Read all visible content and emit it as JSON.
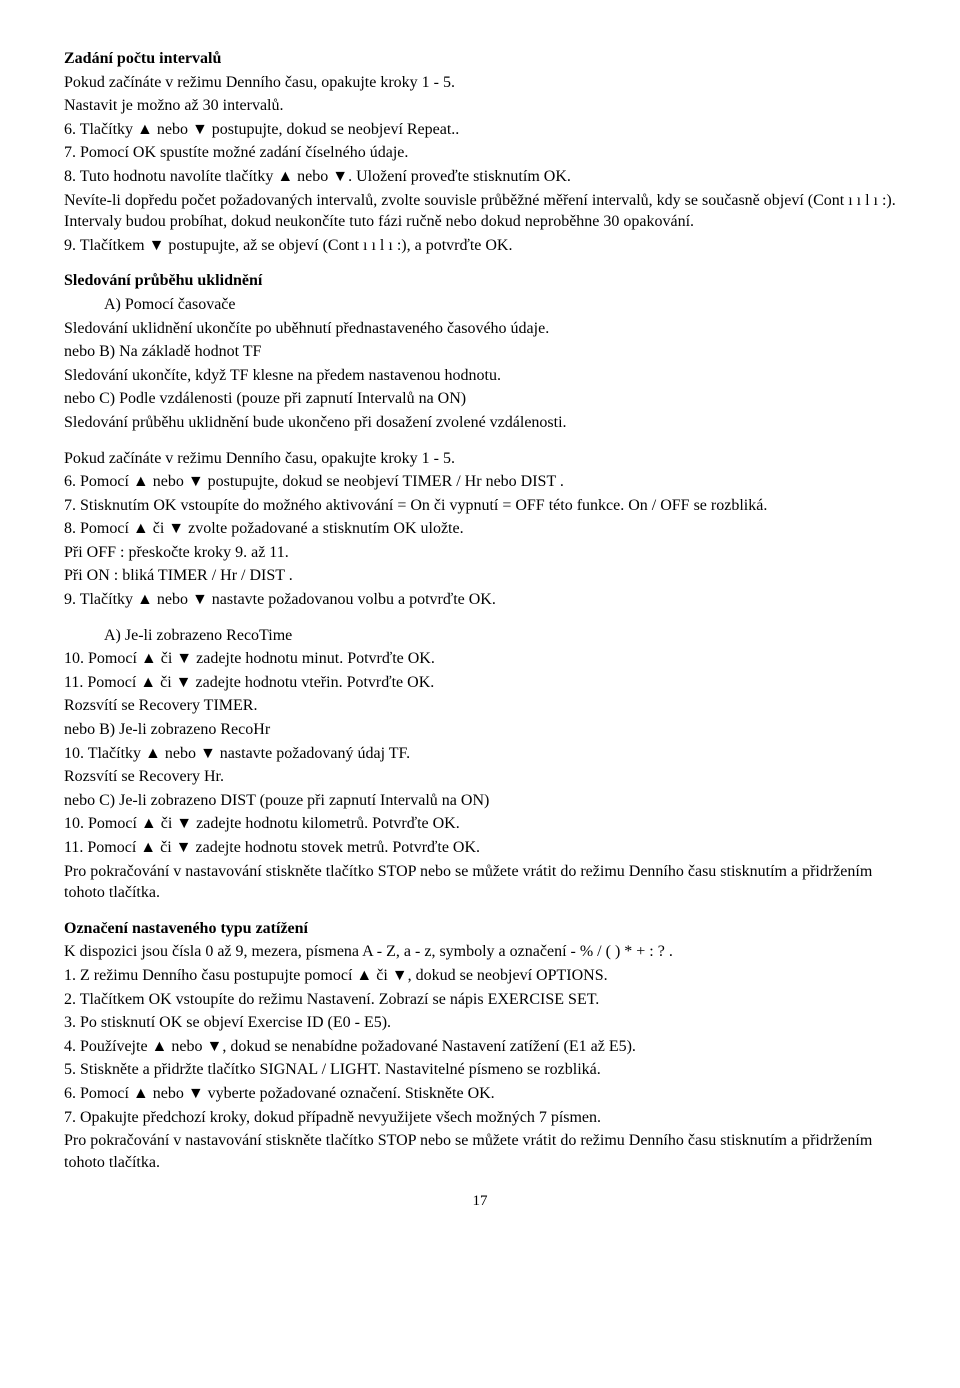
{
  "s1": {
    "title": "Zadání počtu intervalů",
    "l1": "Pokud začínáte v režimu Denního času, opakujte kroky 1 - 5.",
    "l2": "Nastavit je možno až 30 intervalů.",
    "l3": "6.   Tlačítky ▲ nebo ▼ postupujte, dokud se neobjeví Repeat..",
    "l4": "7.   Pomocí OK spustíte možné zadání číselného údaje.",
    "l5": "8.   Tuto hodnotu navolíte tlačítky ▲ nebo ▼. Uložení proveďte stisknutím OK.",
    "l6": "Nevíte-li dopředu počet požadovaných intervalů, zvolte souvisle průběžné měření intervalů, kdy se současně objeví (Cont ı ı l ı :). Intervaly budou probíhat, dokud neukončíte tuto fázi ručně nebo dokud neproběhne 30 opakování.",
    "l7": "9.   Tlačítkem ▼ postupujte, až se objeví (Cont ı ı l ı :), a potvrďte OK."
  },
  "s2": {
    "title": "Sledování  průběhu  uklidnění",
    "a_label": "A)  Pomocí časovače",
    "a1": "Sledování uklidnění ukončíte po uběhnutí přednastaveného časového údaje.",
    "b_label": "nebo   B)  Na základě hodnot TF",
    "b1": "Sledování ukončíte, když TF klesne na předem nastavenou hodnotu.",
    "c_label": "nebo   C)  Podle vzdálenosti (pouze při zapnutí Intervalů na ON)",
    "c1": "Sledování průběhu uklidnění bude ukončeno při dosažení zvolené vzdálenosti."
  },
  "s3": {
    "l1": "Pokud začínáte v režimu Denního času, opakujte kroky 1 - 5.",
    "l2": "6.   Pomocí ▲ nebo ▼ postupujte, dokud se neobjeví TIMER / Hr nebo DIST .",
    "l3": "7.   Stisknutím OK vstoupíte do možného aktivování = On či vypnutí = OFF této funkce. On / OFF se rozbliká.",
    "l4": "8.   Pomocí ▲ či ▼ zvolte požadované a stisknutím OK uložte.",
    "l5": "Při OFF : přeskočte kroky 9. až 11.",
    "l6": "Při ON : bliká TIMER / Hr / DIST .",
    "l7": "9.   Tlačítky ▲ nebo ▼ nastavte požadovanou volbu a potvrďte OK."
  },
  "s4": {
    "a_label": "A)  Je-li zobrazeno RecoTime",
    "a1": "10. Pomocí ▲ či ▼ zadejte hodnotu minut. Potvrďte OK.",
    "a2": " 11. Pomocí ▲ či ▼ zadejte hodnotu vteřin. Potvrďte OK.",
    "a3": "Rozsvítí se Recovery TIMER.",
    "b_label": "nebo   B)  Je-li zobrazeno RecoHr",
    "b1": "10. Tlačítky ▲ nebo ▼ nastavte požadovaný údaj TF.",
    "b2": "Rozsvítí se Recovery Hr.",
    "c_label": "nebo   C)  Je-li zobrazeno DIST (pouze při zapnutí Intervalů na ON)",
    "c1": "10. Pomocí ▲ či ▼ zadejte hodnotu kilometrů. Potvrďte OK.",
    "c2": " 11. Pomocí ▲ či ▼ zadejte hodnotu stovek metrů. Potvrďte OK.",
    "c3": "Pro pokračování v nastavování stiskněte tlačítko STOP nebo se můžete vrátit do režimu Denního času stisknutím a přidržením tohoto tlačítka."
  },
  "s5": {
    "title": "Označení nastaveného typu zatížení",
    "l1": "K dispozici jsou čísla 0 až 9, mezera, písmena A - Z, a - z, symboly a označení  - % / ( ) * + : ? .",
    "l2": "1.   Z režimu Denního času postupujte pomocí ▲ či ▼, dokud se neobjeví OPTIONS.",
    "l3": "2.   Tlačítkem OK vstoupíte do režimu Nastavení. Zobrazí se nápis EXERCISE SET.",
    "l4": "3.   Po stisknutí OK se objeví  Exercise ID (E0 - E5).",
    "l5": "4.   Používejte ▲ nebo ▼, dokud se nenabídne požadované Nastavení zatížení (E1 až E5).",
    "l6": "5.   Stiskněte a přidržte tlačítko SIGNAL / LIGHT. Nastavitelné písmeno se rozbliká.",
    "l7": "6.   Pomocí ▲ nebo ▼ vyberte požadované označení. Stiskněte OK.",
    "l8": "7.   Opakujte předchozí kroky, dokud případně nevyužijete všech možných 7 písmen.",
    "l9": "Pro pokračování v nastavování stiskněte tlačítko STOP nebo se můžete vrátit do režimu Denního času stisknutím a přidržením tohoto tlačítka."
  },
  "pageNumber": "17"
}
